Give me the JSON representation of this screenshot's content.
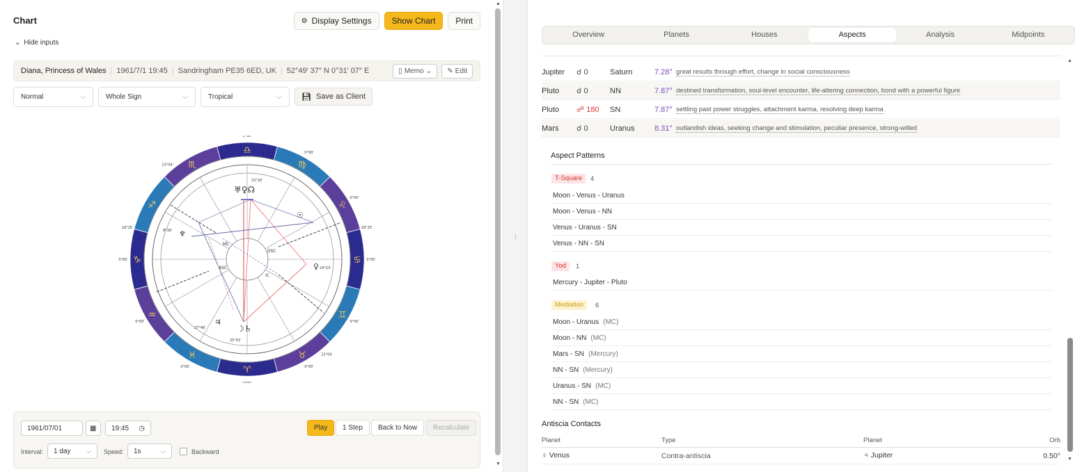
{
  "left": {
    "title": "Chart",
    "buttons": {
      "display_settings": "Display Settings",
      "show_chart": "Show Chart",
      "print": "Print"
    },
    "hide_inputs": "Hide inputs",
    "subject": {
      "name": "Diana, Princess of Wales",
      "datetime": "1961/7/1 19:45",
      "place": "Sandringham PE35 6ED, UK",
      "lat": "52°49′ 37″ N",
      "lon": "0°31′ 07″ E",
      "memo": "Memo",
      "edit": "Edit"
    },
    "selects": {
      "mode": "Normal",
      "house_system": "Whole Sign",
      "zodiac": "Tropical",
      "save_client": "Save as Client"
    },
    "controls": {
      "date": "1961/07/01",
      "time": "19:45",
      "play": "Play",
      "step": "1 Step",
      "back_to_now": "Back to Now",
      "recalculate": "Recalculate",
      "interval_label": "Interval:",
      "interval_value": "1 day",
      "speed_label": "Speed:",
      "speed_value": "1s",
      "backward": "Backward"
    }
  },
  "wheel": {
    "signs": [
      "♈",
      "♉",
      "♊",
      "♋",
      "♌",
      "♍",
      "♎",
      "♏",
      "♐",
      "♑",
      "♒",
      "♓"
    ],
    "degree_labels": [
      "0°00′",
      "0°00′",
      "0°00′",
      "0°00′",
      "0°00′",
      "0°00′",
      "0°00′",
      "0°00′",
      "0°00′",
      "0°00′",
      "18°25′",
      "18°25′",
      "23°04′",
      "23°04′"
    ],
    "angles": {
      "mc": "MC",
      "asc": "ASC",
      "dsc": "DSC",
      "ic": "IC"
    },
    "planet_labels": [
      "♅♀☊",
      "☉",
      "♀",
      "♆",
      "♃",
      "☽♄",
      "24°23′",
      "8°38′",
      "27°48′",
      "25°02′",
      "23°20′"
    ]
  },
  "right": {
    "tabs": [
      "Overview",
      "Planets",
      "Houses",
      "Aspects",
      "Analysis",
      "Midpoints"
    ],
    "active_tab": "Aspects",
    "aspect_rows": [
      {
        "p1": "Jupiter",
        "asp": "☌ 0",
        "p2": "Saturn",
        "orb": "7.28°",
        "desc": "great results through effort, change in social consciousness"
      },
      {
        "p1": "Pluto",
        "asp": "☌ 0",
        "p2": "NN",
        "orb": "7.87°",
        "desc": "destined transformation, soul-level encounter, life-altering connection, bond with a powerful figure"
      },
      {
        "p1": "Pluto",
        "asp": "☍ 180",
        "p2": "SN",
        "orb": "7.87°",
        "desc": "settling past power struggles, attachment karma, resolving deep karma"
      },
      {
        "p1": "Mars",
        "asp": "☌ 0",
        "p2": "Uranus",
        "orb": "8.31°",
        "desc": "outlandish ideas, seeking change and stimulation, peculiar presence, strong-willed"
      }
    ],
    "patterns_title": "Aspect Patterns",
    "tsquare": {
      "label": "T-Square",
      "count": "4",
      "items": [
        "Moon - Venus - Uranus",
        "Moon - Venus - NN",
        "Venus - Uranus - SN",
        "Venus - NN - SN"
      ]
    },
    "yod": {
      "label": "Yod",
      "count": "1",
      "items": [
        "Mercury - Jupiter - Pluto"
      ]
    },
    "mediation": {
      "label": "Mediation",
      "count": "6",
      "items": [
        {
          "text": "Moon - Uranus",
          "note": "(MC)"
        },
        {
          "text": "Moon - NN",
          "note": "(MC)"
        },
        {
          "text": "Mars - SN",
          "note": "(Mercury)"
        },
        {
          "text": "NN - SN",
          "note": "(Mercury)"
        },
        {
          "text": "Uranus - SN",
          "note": "(MC)"
        },
        {
          "text": "NN - SN",
          "note": "(MC)"
        }
      ]
    },
    "antiscia": {
      "title": "Antiscia Contacts",
      "headers": {
        "planet1": "Planet",
        "type": "Type",
        "planet2": "Planet",
        "orb": "Orb"
      },
      "row": {
        "planet1": "♀ Venus",
        "type": "Contra-antiscia",
        "planet2": "♃ Jupiter",
        "orb": "0.50°"
      }
    }
  },
  "colors": {
    "accent": "#f5b81c",
    "ring_dark": "#2a2a8f",
    "ring_blue": "#2a7ab8",
    "ring_purple": "#5b3f9a",
    "orb_purple": "#7a4dc2"
  }
}
